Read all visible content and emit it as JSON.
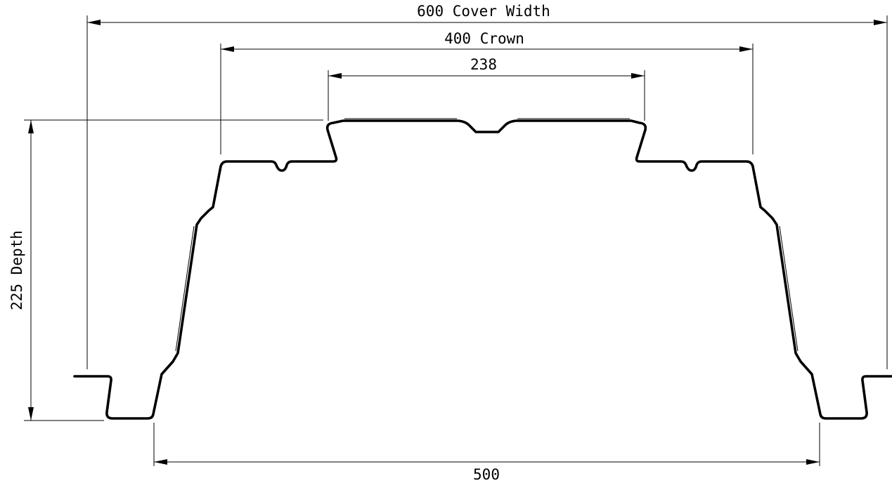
{
  "dimensions": {
    "cover_width": {
      "value": "600",
      "label": "Cover Width"
    },
    "crown": {
      "value": "400",
      "label": "Crown"
    },
    "top_flat": {
      "value": "238"
    },
    "depth": {
      "value": "225",
      "label": "Depth"
    },
    "bottom": {
      "value": "500"
    }
  },
  "colors": {
    "line": "#000000",
    "background": "#ffffff"
  }
}
